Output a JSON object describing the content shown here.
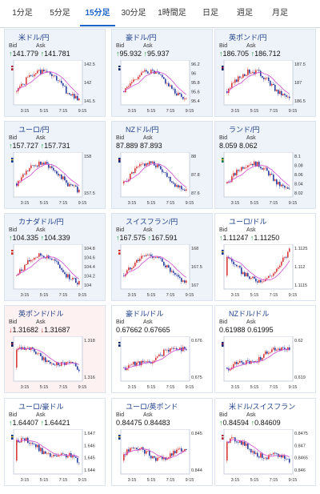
{
  "tabs": [
    {
      "label": "1分足",
      "active": false
    },
    {
      "label": "5分足",
      "active": false
    },
    {
      "label": "15分足",
      "active": true
    },
    {
      "label": "30分足",
      "active": false
    },
    {
      "label": "1時間足",
      "active": false
    },
    {
      "label": "日足",
      "active": false
    },
    {
      "label": "週足",
      "active": false
    },
    {
      "label": "月足",
      "active": false
    }
  ],
  "labels": {
    "bid": "Bid",
    "ask": "Ask"
  },
  "x_ticks": [
    "3:15",
    "5:15",
    "7:15",
    "9:15"
  ],
  "cards": [
    {
      "title": "米ドル/円",
      "flag": "us-jp",
      "dir": "up",
      "bid": "141.779",
      "ask": "141.781",
      "ticks": [
        "142.5",
        "142",
        "141.5"
      ],
      "ylim": [
        141.3,
        142.7
      ],
      "seed": 1,
      "bg": "#eef3fa"
    },
    {
      "title": "豪ドル/円",
      "flag": "au-jp",
      "dir": "up",
      "bid": "95.932",
      "ask": "95.937",
      "ticks": [
        "96.2",
        "96",
        "95.8",
        "95.6",
        "95.4"
      ],
      "ylim": [
        95.3,
        96.3
      ],
      "seed": 2,
      "bg": "#eef3fa"
    },
    {
      "title": "英ポンド/円",
      "flag": "gb-jp",
      "dir": "up",
      "bid": "186.705",
      "ask": "186.712",
      "ticks": [
        "187.5",
        "187",
        "186.5"
      ],
      "ylim": [
        186.3,
        187.7
      ],
      "seed": 3,
      "bg": "#eef3fa"
    },
    {
      "title": "ユーロ/円",
      "flag": "eu-jp",
      "dir": "up",
      "bid": "157.727",
      "ask": "157.731",
      "ticks": [
        "158",
        "157.5"
      ],
      "ylim": [
        157.2,
        158.4
      ],
      "seed": 4,
      "bg": "#eef3fa"
    },
    {
      "title": "NZドル/円",
      "flag": "nz-jp",
      "dir": "",
      "bid": "87.889",
      "ask": "87.893",
      "ticks": [
        "88",
        "87.8",
        "87.6"
      ],
      "ylim": [
        87.5,
        88.2
      ],
      "seed": 5,
      "bg": "#eef3fa"
    },
    {
      "title": "ランド/円",
      "flag": "za-jp",
      "dir": "",
      "bid": "8.059",
      "ask": "8.062",
      "ticks": [
        "8.1",
        "8.08",
        "8.06",
        "8.04",
        "8.02"
      ],
      "ylim": [
        8.01,
        8.11
      ],
      "seed": 6,
      "bg": "#eef3fa"
    },
    {
      "title": "カナダドル/円",
      "flag": "ca-jp",
      "dir": "up",
      "bid": "104.335",
      "ask": "104.339",
      "ticks": [
        "104.8",
        "104.6",
        "104.4",
        "104.2",
        "104"
      ],
      "ylim": [
        103.9,
        104.9
      ],
      "seed": 7,
      "bg": "#eef3fa"
    },
    {
      "title": "スイスフラン/円",
      "flag": "ch-jp",
      "dir": "up",
      "bid": "167.575",
      "ask": "167.591",
      "ticks": [
        "168",
        "167.5",
        "167"
      ],
      "ylim": [
        166.8,
        168.3
      ],
      "seed": 8,
      "bg": "#eef3fa"
    },
    {
      "title": "ユーロ/ドル",
      "flag": "eu-us",
      "dir": "up",
      "bid": "1.11247",
      "ask": "1.11250",
      "ticks": [
        "1.1125",
        "1.112",
        "1.1115"
      ],
      "ylim": [
        1.111,
        1.113
      ],
      "seed": 9,
      "bg": "#ffffff",
      "shape": "dip"
    },
    {
      "title": "英ポンド/ドル",
      "flag": "gb-us",
      "dir": "dn",
      "bid": "1.31682",
      "ask": "1.31687",
      "ticks": [
        "1.318",
        "1.316"
      ],
      "ylim": [
        1.315,
        1.319
      ],
      "seed": 10,
      "bg": "#fdf1f1",
      "shape": "fall"
    },
    {
      "title": "豪ドル/ドル",
      "flag": "au-us",
      "dir": "",
      "bid": "0.67662",
      "ask": "0.67665",
      "ticks": [
        "0.676",
        "0.675"
      ],
      "ylim": [
        0.6745,
        0.677
      ],
      "seed": 11,
      "bg": "#ffffff",
      "shape": "rise"
    },
    {
      "title": "NZドル/ドル",
      "flag": "nz-us",
      "dir": "",
      "bid": "0.61988",
      "ask": "0.61995",
      "ticks": [
        "0.62",
        "0.619"
      ],
      "ylim": [
        0.6185,
        0.6205
      ],
      "seed": 12,
      "bg": "#ffffff",
      "shape": "rise"
    },
    {
      "title": "ユーロ/豪ドル",
      "flag": "eu-au",
      "dir": "up",
      "bid": "1.64407",
      "ask": "1.64421",
      "ticks": [
        "1.647",
        "1.646",
        "1.645",
        "1.644"
      ],
      "ylim": [
        1.6435,
        1.6475
      ],
      "seed": 13,
      "bg": "#ffffff",
      "shape": "fall"
    },
    {
      "title": "ユーロ/英ポンド",
      "flag": "eu-gb",
      "dir": "",
      "bid": "0.84475",
      "ask": "0.84483",
      "ticks": [
        "0.845",
        "0.844"
      ],
      "ylim": [
        0.8437,
        0.8453
      ],
      "seed": 14,
      "bg": "#ffffff",
      "shape": "flat"
    },
    {
      "title": "米ドル/スイスフラン",
      "flag": "us-ch",
      "dir": "up",
      "bid": "0.84594",
      "ask": "0.84609",
      "ticks": [
        "0.8475",
        "0.847",
        "0.8465",
        "0.846"
      ],
      "ylim": [
        0.8457,
        0.8478
      ],
      "seed": 15,
      "bg": "#ffffff",
      "shape": "fall"
    }
  ]
}
